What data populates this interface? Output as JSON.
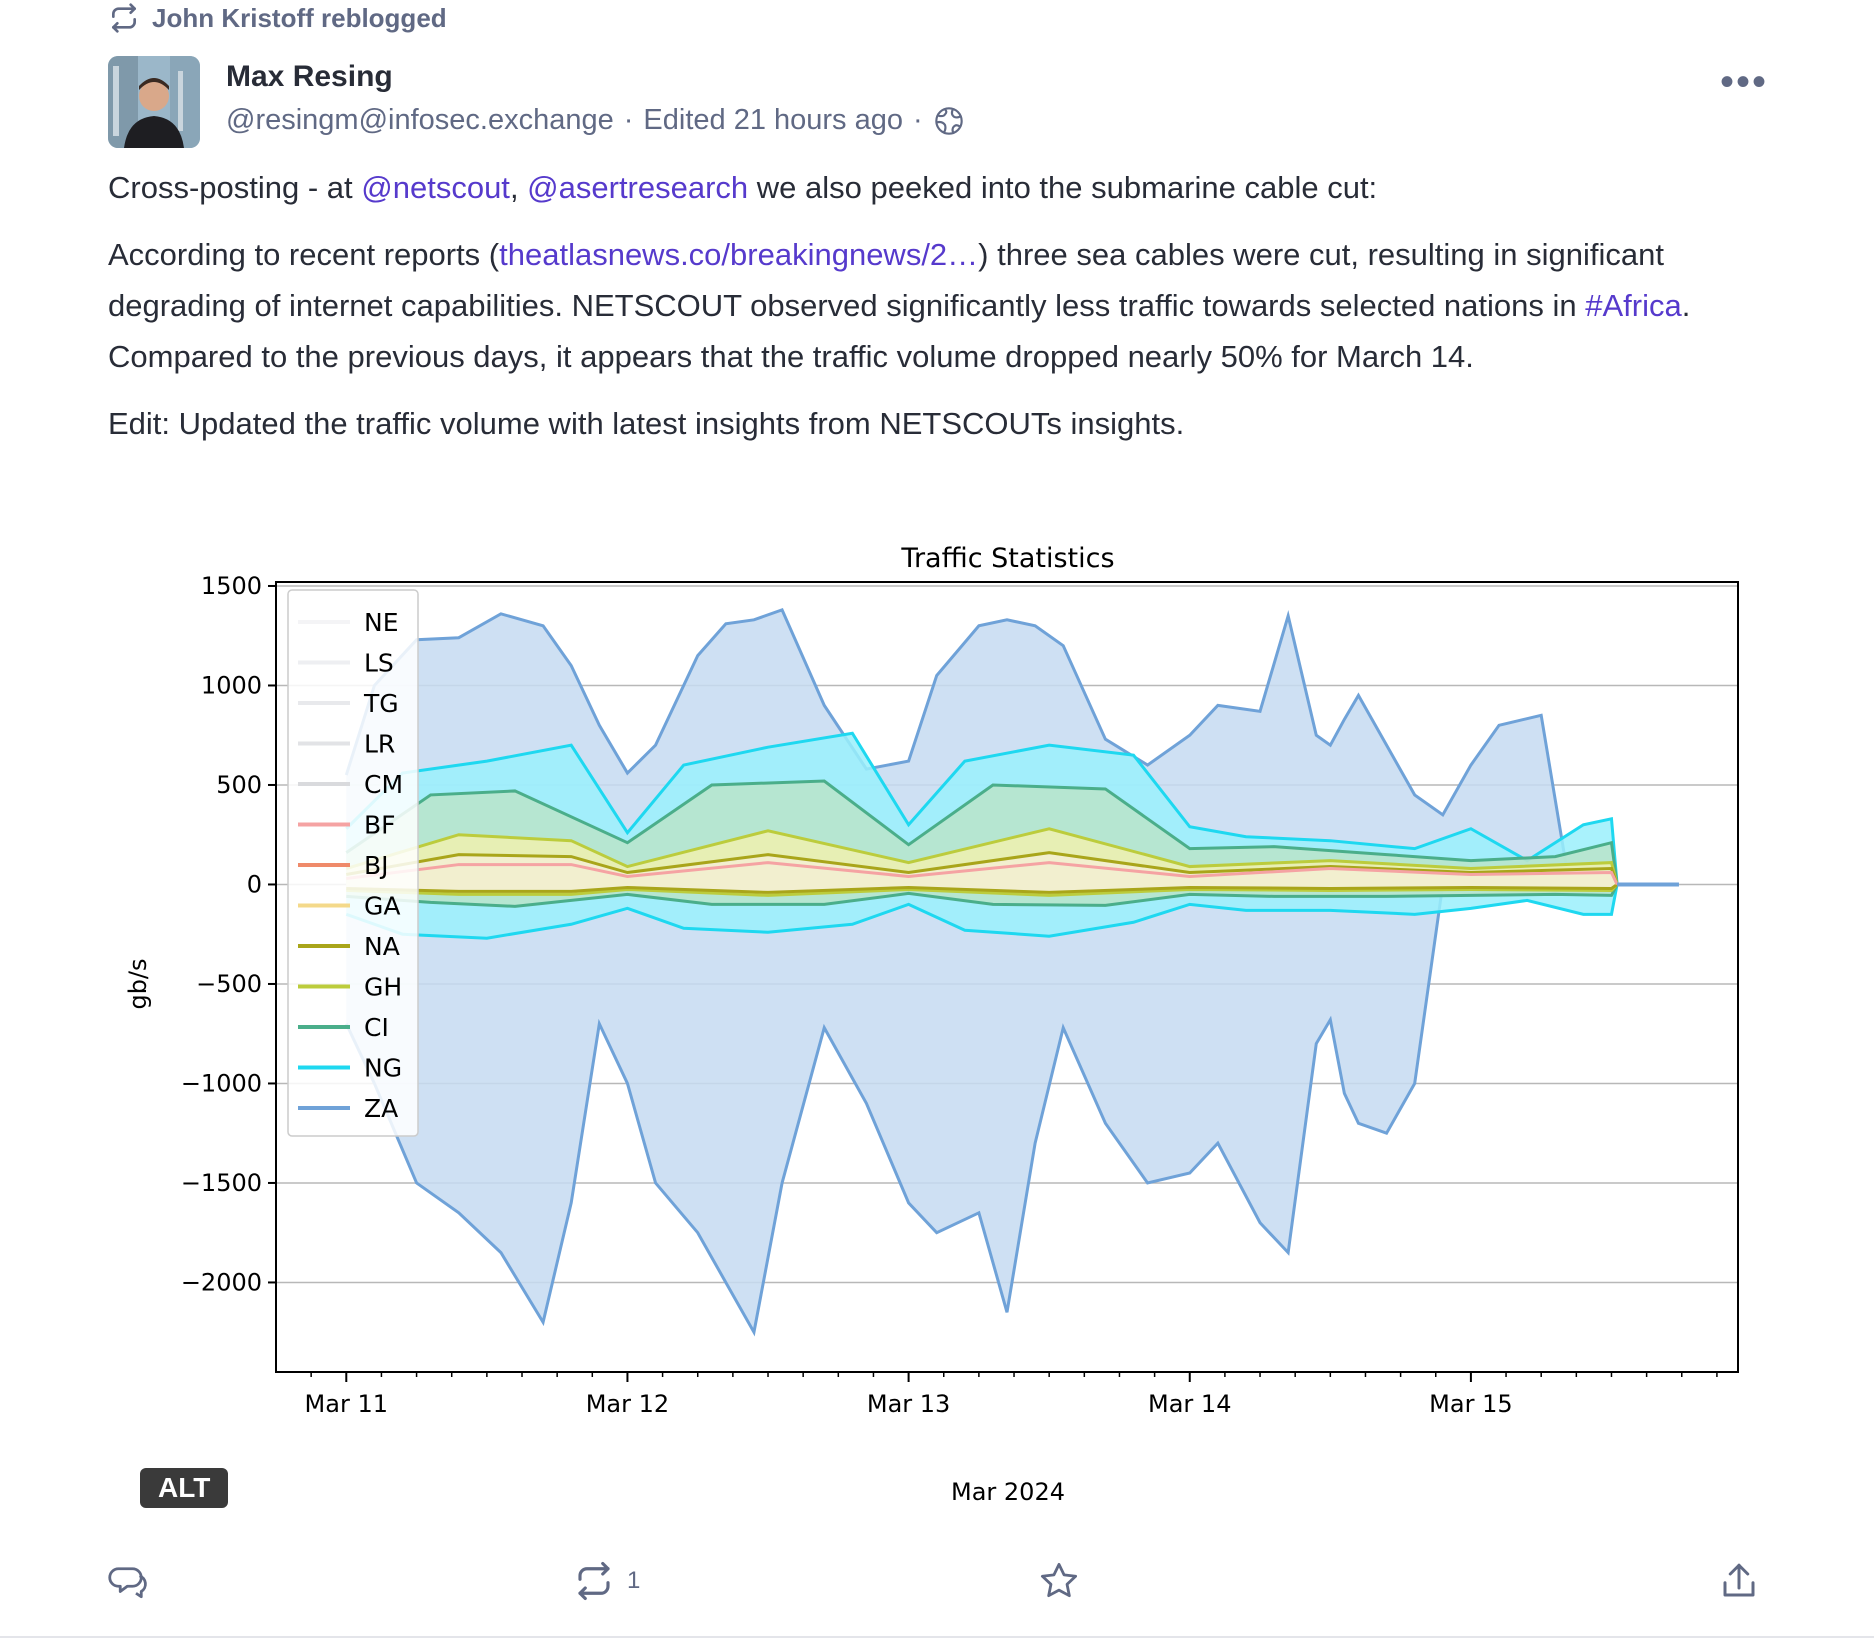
{
  "reblog": {
    "text": "John Kristoff reblogged",
    "icon": "repeat-icon"
  },
  "author": {
    "display_name": "Max Resing",
    "handle": "@resingm@infosec.exchange",
    "edited": "Edited 21 hours ago",
    "visibility_icon": "globe-icon"
  },
  "post": {
    "p1_a": "Cross-posting - at ",
    "mention1": "@netscout",
    "p1_b": ", ",
    "mention2": "@asertresearch",
    "p1_c": "  we also peeked into the submarine cable cut:",
    "p2_a": "According to recent reports (",
    "link": "theatlasnews.co/breakingnews/2…",
    "p2_b": ") three sea cables were cut,  resulting in significant degrading of internet capabilities. NETSCOUT observed significantly less traffic towards selected nations in ",
    "hashtag": "#Africa",
    "p2_c": ". Compared to the previous days, it appears that the traffic volume dropped nearly 50% for March 14.",
    "p3": "Edit: Updated the traffic volume with latest insights from NETSCOUTs insights."
  },
  "media": {
    "alt_badge": "ALT"
  },
  "actions": {
    "reply_icon": "reply-icon",
    "boost_icon": "boost-icon",
    "boost_count": "1",
    "favourite_icon": "star-icon",
    "share_icon": "share-icon"
  },
  "chart_data": {
    "type": "area",
    "title": "Traffic Statistics",
    "ylabel": "gb/s",
    "xlabel": "Mar 2024",
    "x_ticks": [
      "Mar 11",
      "Mar 12",
      "Mar 13",
      "Mar 14",
      "Mar 15"
    ],
    "y_ticks": [
      "1500",
      "1000",
      "500",
      "0",
      "−500",
      "−1000",
      "−1500",
      "−2000"
    ],
    "ylim": [
      -2450,
      1520
    ],
    "grid": true,
    "legend_position": "top-left",
    "series": [
      {
        "name": "NE",
        "color": "#f4f4f6"
      },
      {
        "name": "LS",
        "color": "#eeeff2"
      },
      {
        "name": "TG",
        "color": "#e8e9ec"
      },
      {
        "name": "LR",
        "color": "#e2e3e6"
      },
      {
        "name": "CM",
        "color": "#d9dadd"
      },
      {
        "name": "BF",
        "color": "#f5a3a3"
      },
      {
        "name": "BJ",
        "color": "#ef8a6a"
      },
      {
        "name": "GA",
        "color": "#f4d98a"
      },
      {
        "name": "NA",
        "color": "#a9a51a"
      },
      {
        "name": "GH",
        "color": "#bccc3c"
      },
      {
        "name": "CI",
        "color": "#4aae8a"
      },
      {
        "name": "NG",
        "color": "#1ed8f0"
      },
      {
        "name": "ZA",
        "color": "#6fa2d8"
      }
    ],
    "envelope_note": "",
    "za_outer": {
      "x": [
        0.0,
        0.1,
        0.25,
        0.4,
        0.55,
        0.7,
        0.8,
        0.9,
        1.0,
        1.1,
        1.25,
        1.35,
        1.45,
        1.55,
        1.7,
        1.85,
        2.0,
        2.1,
        2.25,
        2.35,
        2.45,
        2.55,
        2.7,
        2.85,
        3.0,
        3.1,
        3.25,
        3.35,
        3.45,
        3.5,
        3.55,
        3.6,
        3.7,
        3.8,
        3.9,
        4.0,
        4.1,
        4.25,
        4.35,
        4.45,
        4.55,
        4.65,
        4.7,
        4.72
      ],
      "upper": [
        550,
        1000,
        1230,
        1240,
        1360,
        1300,
        1100,
        800,
        560,
        700,
        1150,
        1310,
        1330,
        1380,
        900,
        580,
        620,
        1050,
        1300,
        1330,
        1300,
        1200,
        730,
        600,
        750,
        900,
        870,
        1350,
        750,
        700,
        830,
        950,
        700,
        450,
        350,
        600,
        800,
        850,
        0,
        0,
        0,
        0,
        0,
        0
      ],
      "lower": [
        -700,
        -1000,
        -1500,
        -1650,
        -1850,
        -2200,
        -1600,
        -700,
        -1000,
        -1500,
        -1750,
        -2000,
        -2250,
        -1500,
        -720,
        -1100,
        -1600,
        -1750,
        -1650,
        -2150,
        -1300,
        -720,
        -1200,
        -1500,
        -1450,
        -1300,
        -1700,
        -1850,
        -800,
        -680,
        -1050,
        -1200,
        -1250,
        -1000,
        0,
        0,
        0,
        0,
        0,
        0,
        0,
        0,
        0,
        0
      ]
    },
    "ng_band": {
      "x": [
        0.0,
        0.2,
        0.5,
        0.8,
        1.0,
        1.2,
        1.5,
        1.8,
        2.0,
        2.2,
        2.5,
        2.8,
        3.0,
        3.2,
        3.5,
        3.8,
        4.0,
        4.2,
        4.4,
        4.5,
        4.52
      ],
      "upper": [
        280,
        560,
        620,
        700,
        260,
        600,
        690,
        760,
        300,
        620,
        700,
        650,
        290,
        240,
        220,
        180,
        280,
        120,
        300,
        330,
        0
      ],
      "lower": [
        -150,
        -250,
        -270,
        -200,
        -120,
        -220,
        -240,
        -200,
        -100,
        -230,
        -260,
        -190,
        -100,
        -130,
        -130,
        -150,
        -120,
        -80,
        -150,
        -150,
        0
      ]
    },
    "ci_band": {
      "x": [
        0.0,
        0.3,
        0.6,
        1.0,
        1.3,
        1.7,
        2.0,
        2.3,
        2.7,
        3.0,
        3.3,
        3.7,
        4.0,
        4.3,
        4.5,
        4.52
      ],
      "upper": [
        160,
        450,
        470,
        210,
        500,
        520,
        200,
        500,
        480,
        180,
        190,
        150,
        120,
        140,
        210,
        0
      ],
      "lower": [
        -60,
        -90,
        -110,
        -50,
        -100,
        -100,
        -45,
        -100,
        -105,
        -50,
        -60,
        -60,
        -55,
        -50,
        -55,
        0
      ]
    },
    "gh_band": {
      "x": [
        0.0,
        0.4,
        0.8,
        1.0,
        1.5,
        2.0,
        2.5,
        3.0,
        3.5,
        4.0,
        4.5,
        4.52
      ],
      "upper": [
        80,
        250,
        220,
        90,
        270,
        110,
        280,
        90,
        120,
        80,
        110,
        0
      ],
      "lower": [
        -30,
        -50,
        -50,
        -25,
        -55,
        -25,
        -55,
        -25,
        -30,
        -25,
        -30,
        0
      ]
    },
    "na_line": {
      "x": [
        0.0,
        0.4,
        0.8,
        1.0,
        1.5,
        2.0,
        2.5,
        3.0,
        3.5,
        4.0,
        4.5,
        4.52
      ],
      "upper": [
        50,
        150,
        140,
        60,
        150,
        60,
        160,
        60,
        90,
        60,
        80,
        0
      ],
      "lower": [
        -20,
        -35,
        -35,
        -15,
        -40,
        -15,
        -40,
        -15,
        -20,
        -15,
        -20,
        0
      ]
    },
    "bf_line": {
      "x": [
        0.0,
        0.4,
        0.8,
        1.0,
        1.5,
        2.0,
        2.5,
        3.0,
        3.5,
        4.0,
        4.5,
        4.52
      ],
      "upper": [
        30,
        100,
        100,
        40,
        110,
        40,
        110,
        40,
        80,
        50,
        60,
        0
      ]
    }
  }
}
